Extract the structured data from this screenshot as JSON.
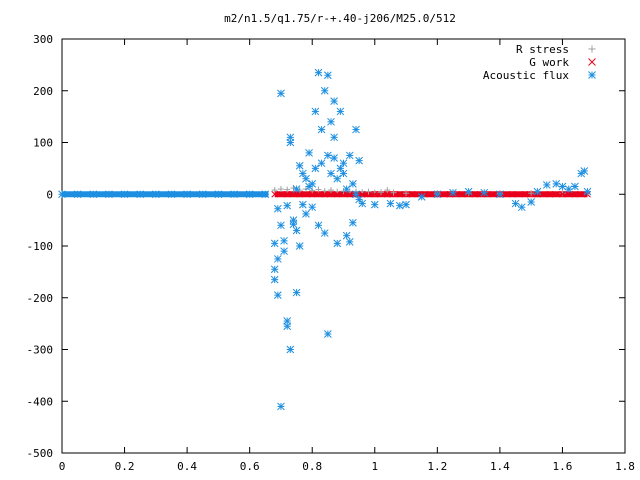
{
  "chart_data": {
    "type": "scatter",
    "title": "m2/n1.5/q1.75/r-+.40-j206/M25.0/512",
    "xlabel": "",
    "ylabel": "",
    "xlim": [
      0,
      1.8
    ],
    "ylim": [
      -500,
      300
    ],
    "grid": false,
    "legend_position": "top-right",
    "x_ticks": [
      "0",
      "0.2",
      "0.4",
      "0.6",
      "0.8",
      "1",
      "1.2",
      "1.4",
      "1.6",
      "1.8"
    ],
    "y_ticks": [
      "300",
      "200",
      "100",
      "0",
      "-100",
      "-200",
      "-300",
      "-400",
      "-500"
    ],
    "series": [
      {
        "name": "R stress",
        "marker": "plus",
        "color": "#a0a0a0",
        "points": [
          [
            0.68,
            8
          ],
          [
            0.7,
            10
          ],
          [
            0.72,
            9
          ],
          [
            0.74,
            12
          ],
          [
            0.76,
            8
          ],
          [
            0.78,
            10
          ],
          [
            0.8,
            7
          ],
          [
            0.82,
            9
          ],
          [
            0.84,
            6
          ],
          [
            0.86,
            8
          ],
          [
            0.88,
            5
          ],
          [
            0.9,
            6
          ],
          [
            0.92,
            4
          ],
          [
            0.94,
            5
          ],
          [
            0.96,
            4
          ],
          [
            0.98,
            5
          ],
          [
            1.0,
            3
          ],
          [
            1.02,
            4
          ],
          [
            1.04,
            8
          ],
          [
            1.06,
            3
          ],
          [
            1.1,
            2
          ],
          [
            1.2,
            2
          ],
          [
            1.3,
            2
          ],
          [
            1.4,
            2
          ],
          [
            1.5,
            2
          ],
          [
            1.6,
            2
          ],
          [
            1.68,
            2
          ]
        ]
      },
      {
        "name": "G work",
        "marker": "cross",
        "color": "#e8001c",
        "points": [
          [
            0.68,
            0
          ],
          [
            0.72,
            0
          ],
          [
            0.76,
            0
          ],
          [
            0.8,
            0
          ],
          [
            0.84,
            0
          ],
          [
            0.88,
            0
          ],
          [
            0.92,
            0
          ],
          [
            0.96,
            0
          ],
          [
            1.0,
            0
          ],
          [
            1.04,
            0
          ],
          [
            1.08,
            0
          ],
          [
            1.12,
            0
          ],
          [
            1.16,
            0
          ],
          [
            1.2,
            0
          ],
          [
            1.24,
            0
          ],
          [
            1.28,
            0
          ],
          [
            1.32,
            0
          ],
          [
            1.36,
            0
          ],
          [
            1.4,
            0
          ],
          [
            1.44,
            0
          ],
          [
            1.48,
            0
          ],
          [
            1.52,
            0
          ],
          [
            1.56,
            0
          ],
          [
            1.6,
            0
          ],
          [
            1.64,
            0
          ],
          [
            1.68,
            0
          ]
        ]
      },
      {
        "name": "Acoustic flux",
        "marker": "star",
        "color": "#1e8fe0",
        "points": [
          [
            0.0,
            0
          ],
          [
            0.05,
            0
          ],
          [
            0.1,
            0
          ],
          [
            0.15,
            0
          ],
          [
            0.2,
            0
          ],
          [
            0.25,
            0
          ],
          [
            0.3,
            0
          ],
          [
            0.35,
            0
          ],
          [
            0.4,
            0
          ],
          [
            0.45,
            0
          ],
          [
            0.5,
            0
          ],
          [
            0.55,
            0
          ],
          [
            0.6,
            0
          ],
          [
            0.65,
            0
          ],
          [
            0.68,
            -95
          ],
          [
            0.68,
            -145
          ],
          [
            0.68,
            -165
          ],
          [
            0.69,
            -28
          ],
          [
            0.69,
            -195
          ],
          [
            0.69,
            -125
          ],
          [
            0.7,
            195
          ],
          [
            0.7,
            -410
          ],
          [
            0.7,
            -60
          ],
          [
            0.71,
            -90
          ],
          [
            0.71,
            -110
          ],
          [
            0.72,
            -245
          ],
          [
            0.72,
            -255
          ],
          [
            0.72,
            -22
          ],
          [
            0.73,
            110
          ],
          [
            0.73,
            100
          ],
          [
            0.73,
            -300
          ],
          [
            0.74,
            -50
          ],
          [
            0.74,
            -58
          ],
          [
            0.75,
            10
          ],
          [
            0.75,
            -190
          ],
          [
            0.75,
            -70
          ],
          [
            0.76,
            55
          ],
          [
            0.76,
            -100
          ],
          [
            0.77,
            40
          ],
          [
            0.77,
            -20
          ],
          [
            0.78,
            -38
          ],
          [
            0.78,
            30
          ],
          [
            0.79,
            80
          ],
          [
            0.79,
            15
          ],
          [
            0.8,
            -25
          ],
          [
            0.8,
            20
          ],
          [
            0.81,
            160
          ],
          [
            0.81,
            50
          ],
          [
            0.82,
            235
          ],
          [
            0.82,
            -60
          ],
          [
            0.83,
            125
          ],
          [
            0.83,
            60
          ],
          [
            0.84,
            200
          ],
          [
            0.84,
            -75
          ],
          [
            0.85,
            230
          ],
          [
            0.85,
            75
          ],
          [
            0.85,
            -270
          ],
          [
            0.86,
            140
          ],
          [
            0.86,
            40
          ],
          [
            0.87,
            110
          ],
          [
            0.87,
            180
          ],
          [
            0.87,
            70
          ],
          [
            0.88,
            -95
          ],
          [
            0.88,
            30
          ],
          [
            0.89,
            160
          ],
          [
            0.89,
            50
          ],
          [
            0.9,
            40
          ],
          [
            0.9,
            60
          ],
          [
            0.91,
            -80
          ],
          [
            0.91,
            10
          ],
          [
            0.92,
            75
          ],
          [
            0.92,
            -92
          ],
          [
            0.93,
            20
          ],
          [
            0.93,
            -55
          ],
          [
            0.94,
            125
          ],
          [
            0.94,
            0
          ],
          [
            0.95,
            65
          ],
          [
            0.95,
            -10
          ],
          [
            0.96,
            -18
          ],
          [
            1.0,
            -20
          ],
          [
            1.05,
            -18
          ],
          [
            1.08,
            -22
          ],
          [
            1.1,
            -20
          ],
          [
            1.15,
            -5
          ],
          [
            1.2,
            0
          ],
          [
            1.25,
            3
          ],
          [
            1.3,
            5
          ],
          [
            1.35,
            3
          ],
          [
            1.4,
            0
          ],
          [
            1.45,
            -18
          ],
          [
            1.47,
            -25
          ],
          [
            1.5,
            -15
          ],
          [
            1.52,
            5
          ],
          [
            1.55,
            18
          ],
          [
            1.58,
            20
          ],
          [
            1.6,
            15
          ],
          [
            1.62,
            10
          ],
          [
            1.64,
            15
          ],
          [
            1.66,
            40
          ],
          [
            1.67,
            45
          ],
          [
            1.68,
            5
          ]
        ]
      }
    ]
  }
}
